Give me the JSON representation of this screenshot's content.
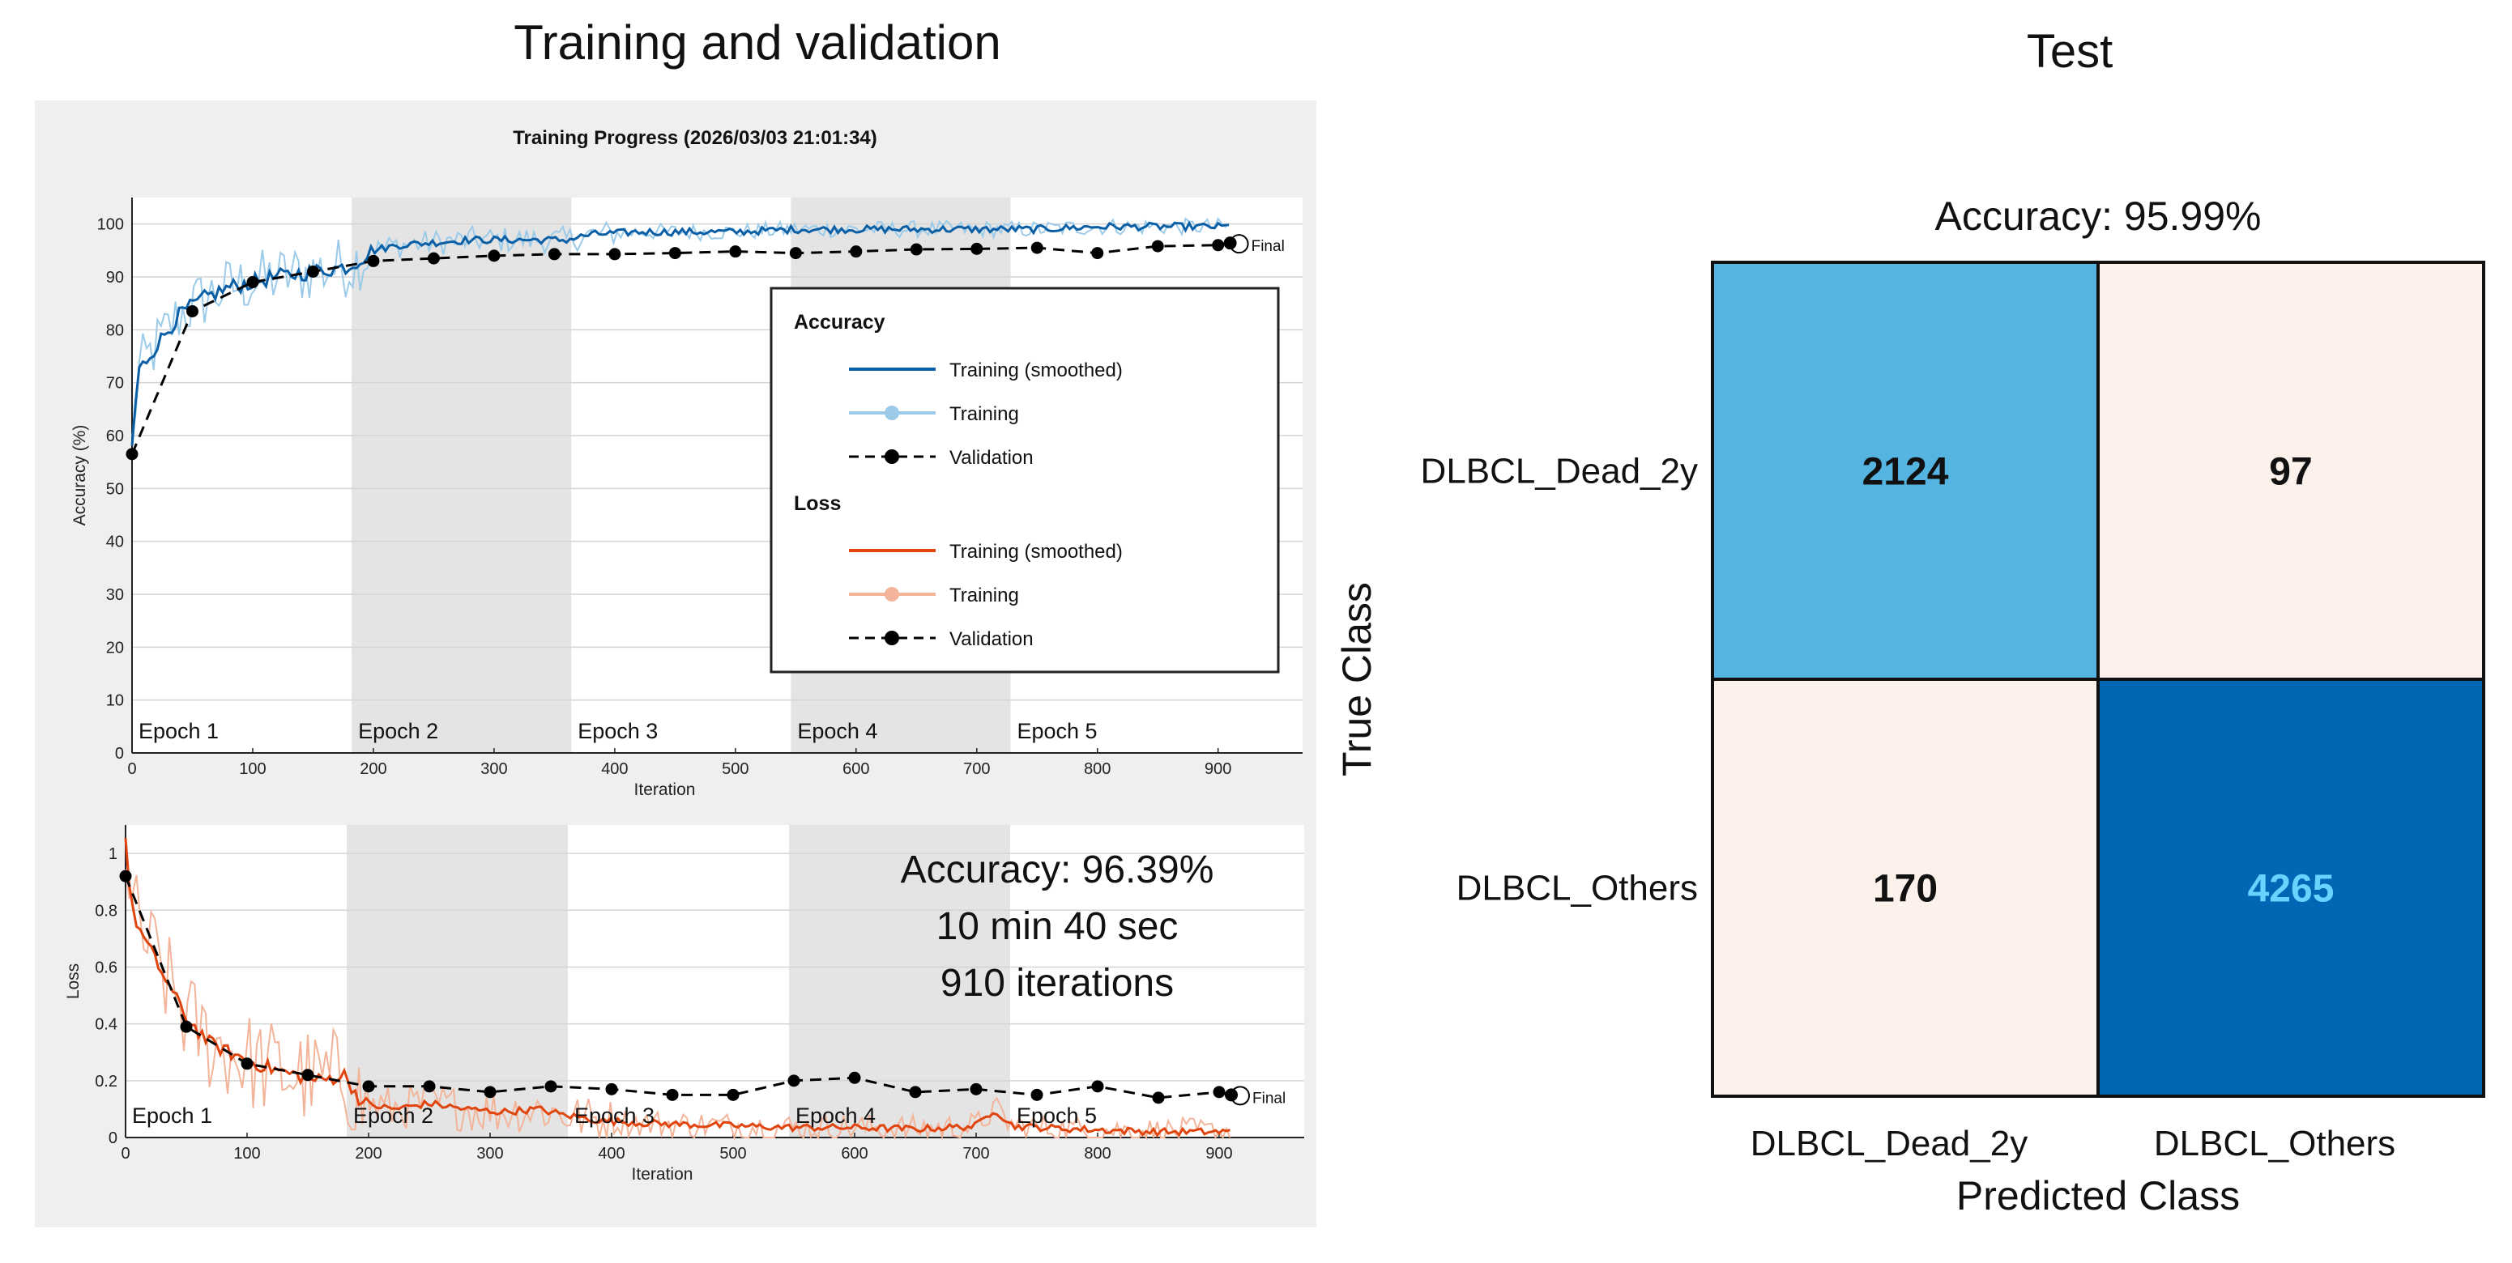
{
  "left_panel": {
    "heading": "Training and validation",
    "window_title": "Training Progress (2026/03/03 21:01:34)",
    "final_label": "Final",
    "summary": [
      "Accuracy: 96.39%",
      "10 min 40 sec",
      "910 iterations"
    ]
  },
  "right_panel": {
    "heading": "Test",
    "accuracy_title": "Accuracy: 95.99%"
  },
  "legend": {
    "accuracy_header": "Accuracy",
    "loss_header": "Loss",
    "items": {
      "smoothed": "Training (smoothed)",
      "training": "Training",
      "validation": "Validation"
    }
  },
  "colors": {
    "acc_smoothed": "#0b5fa5",
    "acc_raw": "#9ccbe9",
    "loss_smoothed": "#e0450f",
    "loss_raw": "#f3b49a",
    "validation": "#000000",
    "epoch_shade": "#e4e4e4",
    "panel_bg": "#efefef",
    "cm_high": "#0067b4",
    "cm_mid": "#56b4e0",
    "cm_low": "#fdf1eb"
  },
  "chart_data": [
    {
      "type": "line",
      "xlabel": "Iteration",
      "ylabel": "Accuracy (%)",
      "xlim": [
        0,
        970
      ],
      "ylim": [
        0,
        105
      ],
      "xticks": [
        0,
        100,
        200,
        300,
        400,
        500,
        600,
        700,
        800,
        900
      ],
      "yticks": [
        0,
        10,
        20,
        30,
        40,
        50,
        60,
        70,
        80,
        90,
        100
      ],
      "grid": true,
      "legend_position": "right",
      "epochs": [
        {
          "label": "Epoch 1",
          "start": 0,
          "end": 182
        },
        {
          "label": "Epoch 2",
          "start": 182,
          "end": 364
        },
        {
          "label": "Epoch 3",
          "start": 364,
          "end": 546
        },
        {
          "label": "Epoch 4",
          "start": 546,
          "end": 728
        },
        {
          "label": "Epoch 5",
          "start": 728,
          "end": 910
        }
      ],
      "series": [
        {
          "name": "Training (smoothed)",
          "x": [
            0,
            5,
            20,
            40,
            60,
            80,
            100,
            120,
            150,
            180,
            200,
            220,
            250,
            280,
            300,
            330,
            360,
            380,
            420,
            460,
            500,
            550,
            600,
            650,
            700,
            750,
            800,
            850,
            910
          ],
          "y": [
            58,
            72,
            77,
            83,
            86,
            88,
            89,
            90,
            91,
            92,
            95,
            96,
            96.5,
            97,
            97,
            97,
            97,
            98,
            98.5,
            98.5,
            98.5,
            99,
            99,
            99,
            99,
            99,
            99.5,
            99.5,
            99.5
          ]
        },
        {
          "name": "Validation",
          "x": [
            0,
            50,
            100,
            150,
            200,
            250,
            300,
            350,
            400,
            450,
            500,
            550,
            600,
            650,
            700,
            750,
            800,
            850,
            900,
            910
          ],
          "y": [
            56.5,
            83.5,
            89,
            91,
            93,
            93.5,
            94,
            94.3,
            94.3,
            94.5,
            94.8,
            94.5,
            94.8,
            95.2,
            95.3,
            95.5,
            94.5,
            95.8,
            96,
            96.4
          ]
        }
      ]
    },
    {
      "type": "line",
      "xlabel": "Iteration",
      "ylabel": "Loss",
      "xlim": [
        0,
        970
      ],
      "ylim": [
        0,
        1.1
      ],
      "xticks": [
        0,
        100,
        200,
        300,
        400,
        500,
        600,
        700,
        800,
        900
      ],
      "yticks": [
        0,
        0.2,
        0.4,
        0.6,
        0.8,
        1
      ],
      "grid": true,
      "epochs": [
        {
          "label": "Epoch 1",
          "start": 0,
          "end": 182
        },
        {
          "label": "Epoch 2",
          "start": 182,
          "end": 364
        },
        {
          "label": "Epoch 3",
          "start": 364,
          "end": 546
        },
        {
          "label": "Epoch 4",
          "start": 546,
          "end": 728
        },
        {
          "label": "Epoch 5",
          "start": 728,
          "end": 910
        }
      ],
      "series": [
        {
          "name": "Training (smoothed)",
          "x": [
            0,
            5,
            15,
            30,
            50,
            70,
            100,
            130,
            160,
            180,
            195,
            220,
            250,
            280,
            310,
            340,
            360,
            390,
            430,
            470,
            510,
            550,
            600,
            650,
            700,
            715,
            730,
            780,
            850,
            910
          ],
          "y": [
            1.05,
            0.8,
            0.7,
            0.58,
            0.42,
            0.33,
            0.27,
            0.23,
            0.2,
            0.22,
            0.12,
            0.1,
            0.12,
            0.1,
            0.09,
            0.1,
            0.08,
            0.06,
            0.05,
            0.045,
            0.04,
            0.035,
            0.035,
            0.03,
            0.04,
            0.1,
            0.04,
            0.03,
            0.02,
            0.02
          ]
        },
        {
          "name": "Validation",
          "x": [
            0,
            50,
            100,
            150,
            200,
            250,
            300,
            350,
            400,
            450,
            500,
            550,
            600,
            650,
            700,
            750,
            800,
            850,
            900,
            910
          ],
          "y": [
            0.92,
            0.39,
            0.26,
            0.22,
            0.18,
            0.18,
            0.16,
            0.18,
            0.17,
            0.15,
            0.15,
            0.2,
            0.21,
            0.16,
            0.17,
            0.15,
            0.18,
            0.14,
            0.16,
            0.15
          ]
        }
      ]
    },
    {
      "type": "heatmap",
      "title": "Accuracy: 95.99%",
      "xlabel": "Predicted Class",
      "ylabel": "True Class",
      "classes": [
        "DLBCL_Dead_2y",
        "DLBCL_Others"
      ],
      "matrix": [
        [
          2124,
          97
        ],
        [
          170,
          4265
        ]
      ]
    }
  ]
}
